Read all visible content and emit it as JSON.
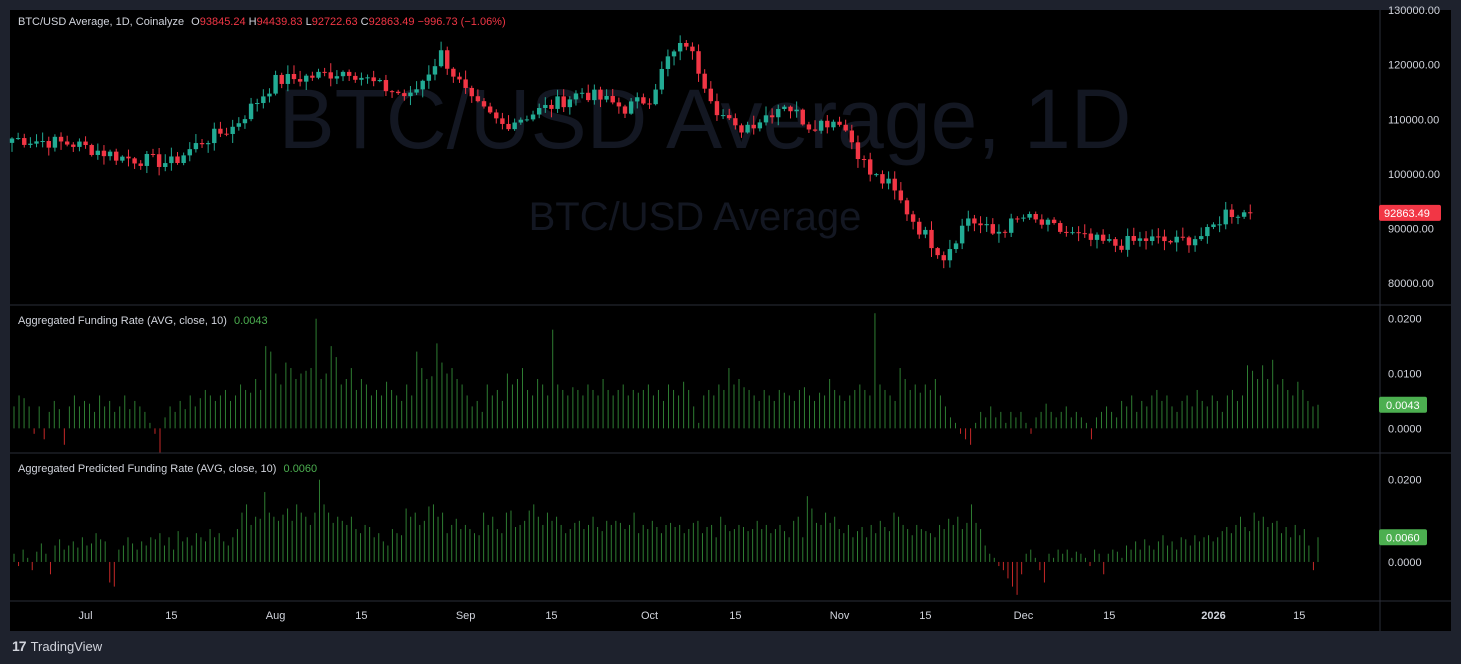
{
  "legend": {
    "symbol": "BTC/USD Average, 1D, Coinalyze",
    "o_label": "O",
    "o_value": "93845.24",
    "h_label": "H",
    "h_value": "94439.83",
    "l_label": "L",
    "l_value": "92722.63",
    "c_label": "C",
    "c_value": "92863.49",
    "change": "−996.73 (−1.06%)"
  },
  "watermark": {
    "big": "BTC/USD Average, 1D",
    "small": "BTC/USD Average"
  },
  "panes": {
    "funding": {
      "label": "Aggregated Funding Rate (AVG, close, 10)",
      "value": "0.0043"
    },
    "predicted": {
      "label": "Aggregated Predicted Funding Rate (AVG, close, 10)",
      "value": "0.0060"
    }
  },
  "branding": {
    "text": "TradingView",
    "icon": "tradingview-logo-icon"
  },
  "colors": {
    "up": "#22ab94",
    "down": "#f23645",
    "bg": "#000000",
    "frame": "#1e222d",
    "axis_text": "#d1d4dc",
    "last_price_badge": "#f23645",
    "funding_badge": "#4caf50"
  },
  "chart_data": [
    {
      "type": "candlestick",
      "title": "BTC/USD Average, 1D, Coinalyze",
      "ylim": [
        76000,
        130000
      ],
      "y_ticks": [
        "130000.00",
        "120000.00",
        "110000.00",
        "100000.00",
        "90000.00",
        "80000.00"
      ],
      "y_tick_values": [
        130000,
        120000,
        110000,
        100000,
        90000,
        80000
      ],
      "last_price": "92863.49",
      "last_value": 92863.49,
      "x_ticks": [
        "15",
        "Jul",
        "15",
        "Aug",
        "15",
        "Sep",
        "15",
        "Oct",
        "15",
        "Nov",
        "15",
        "Dec",
        "15",
        "2026",
        "15"
      ],
      "x_tick_day": [
        -4,
        12,
        26,
        43,
        57,
        74,
        88,
        104,
        118,
        135,
        149,
        165,
        179,
        196,
        210
      ],
      "close_anchor_day": [
        0,
        10,
        18,
        26,
        31,
        36,
        43,
        50,
        55,
        60,
        65,
        70,
        75,
        80,
        87,
        93,
        100,
        104,
        107,
        110,
        115,
        118,
        122,
        126,
        130,
        135,
        140,
        143,
        148,
        152,
        156,
        160,
        165,
        170,
        175,
        180,
        185,
        190,
        195,
        198,
        202
      ],
      "close_anchor_value": [
        106500,
        105500,
        103000,
        102000,
        106000,
        108500,
        117000,
        118000,
        119000,
        116000,
        114000,
        122000,
        113000,
        109000,
        112000,
        115000,
        112000,
        114000,
        121000,
        124000,
        112000,
        108000,
        110000,
        113000,
        109000,
        110000,
        100000,
        98000,
        90000,
        85000,
        92000,
        89000,
        92000,
        90000,
        88000,
        87000,
        88000,
        87500,
        89000,
        93000,
        92863
      ]
    },
    {
      "type": "bar",
      "title": "Aggregated Funding Rate (AVG, close, 10)",
      "ylim": [
        -0.0045,
        0.0225
      ],
      "y_ticks": [
        "0.0200",
        "0.0100",
        "0.0000"
      ],
      "y_tick_values": [
        0.02,
        0.01,
        0
      ],
      "last_value_label": "0.0043",
      "values": [
        0.004,
        0.006,
        0.0055,
        0.004,
        -0.001,
        0.004,
        -0.002,
        0.003,
        0.005,
        0.0035,
        -0.003,
        0.004,
        0.006,
        0.004,
        0.005,
        0.0045,
        0.003,
        0.006,
        0.004,
        0.005,
        0.003,
        0.004,
        0.006,
        0.0035,
        0.005,
        0.004,
        0.003,
        0.001,
        -0.001,
        -0.0045,
        0.002,
        0.004,
        0.003,
        0.005,
        0.0035,
        0.006,
        0.004,
        0.0055,
        0.007,
        0.006,
        0.005,
        0.006,
        0.007,
        0.005,
        0.006,
        0.008,
        0.007,
        0.0065,
        0.009,
        0.007,
        0.015,
        0.014,
        0.01,
        0.008,
        0.012,
        0.011,
        0.009,
        0.01,
        0.0105,
        0.011,
        0.02,
        0.009,
        0.01,
        0.015,
        0.013,
        0.008,
        0.009,
        0.011,
        0.007,
        0.009,
        0.008,
        0.006,
        0.007,
        0.006,
        0.0085,
        0.007,
        0.006,
        0.005,
        0.008,
        0.006,
        0.014,
        0.011,
        0.009,
        0.0095,
        0.0155,
        0.012,
        0.01,
        0.011,
        0.009,
        0.008,
        0.006,
        0.004,
        0.005,
        0.003,
        0.008,
        0.006,
        0.007,
        0.005,
        0.01,
        0.008,
        0.009,
        0.011,
        0.007,
        0.006,
        0.009,
        0.008,
        0.006,
        0.018,
        0.008,
        0.007,
        0.006,
        0.0075,
        0.007,
        0.006,
        0.008,
        0.007,
        0.006,
        0.009,
        0.007,
        0.006,
        0.007,
        0.008,
        0.006,
        0.007,
        0.0065,
        0.007,
        0.008,
        0.006,
        0.007,
        0.005,
        0.008,
        0.007,
        0.006,
        0.0085,
        0.007,
        0.004,
        0.001,
        0.006,
        0.007,
        0.006,
        0.008,
        0.007,
        0.011,
        0.008,
        0.009,
        0.0075,
        0.007,
        0.006,
        0.005,
        0.007,
        0.006,
        0.005,
        0.007,
        0.0065,
        0.006,
        0.005,
        0.007,
        0.0075,
        0.006,
        0.005,
        0.0065,
        0.006,
        0.009,
        0.007,
        0.006,
        0.005,
        0.006,
        0.007,
        0.008,
        0.007,
        0.006,
        0.021,
        0.008,
        0.007,
        0.006,
        0.005,
        0.011,
        0.009,
        0.007,
        0.008,
        0.0065,
        0.008,
        0.007,
        0.009,
        0.006,
        0.004,
        0.002,
        0.001,
        -0.001,
        -0.002,
        -0.003,
        0.001,
        0.003,
        0.002,
        0.004,
        0.002,
        0.003,
        0.001,
        0.003,
        0.002,
        0.003,
        0.001,
        -0.001,
        0.002,
        0.003,
        0.0045,
        0.003,
        0.002,
        0.003,
        0.004,
        0.002,
        0.003,
        0.002,
        0.001,
        -0.002,
        0.002,
        0.003,
        0.004,
        0.003,
        0.002,
        0.005,
        0.004,
        0.006,
        0.003,
        0.005,
        0.004,
        0.006,
        0.007,
        0.005,
        0.006,
        0.004,
        0.003,
        0.005,
        0.006,
        0.004,
        0.007,
        0.005,
        0.004,
        0.006,
        0.005,
        0.003,
        0.006,
        0.007,
        0.005,
        0.006,
        0.0115,
        0.0105,
        0.009,
        0.0115,
        0.009,
        0.0125,
        0.008,
        0.009,
        0.007,
        0.006,
        0.0085,
        0.007,
        0.005,
        0.004,
        0.0043
      ]
    },
    {
      "type": "bar",
      "title": "Aggregated Predicted Funding Rate (AVG, close, 10)",
      "ylim": [
        -0.0095,
        0.0265
      ],
      "y_ticks": [
        "0.0200",
        "0.0000"
      ],
      "y_tick_values": [
        0.02,
        0
      ],
      "last_value_label": "0.0060",
      "values": [
        0.002,
        -0.001,
        0.003,
        0.001,
        -0.002,
        0.0025,
        0.0045,
        0.002,
        -0.003,
        0.004,
        0.0055,
        0.003,
        0.004,
        0.005,
        0.0035,
        0.006,
        0.004,
        0.0045,
        0.007,
        0.0055,
        0.005,
        -0.005,
        -0.006,
        0.003,
        0.004,
        0.006,
        0.0045,
        0.003,
        0.005,
        0.004,
        0.006,
        0.0055,
        0.007,
        0.004,
        0.006,
        0.003,
        0.0075,
        0.005,
        0.006,
        0.004,
        0.007,
        0.006,
        0.005,
        0.008,
        0.006,
        0.007,
        0.005,
        0.004,
        0.006,
        0.008,
        0.012,
        0.014,
        0.009,
        0.011,
        0.0105,
        0.017,
        0.012,
        0.011,
        0.01,
        0.0115,
        0.013,
        0.01,
        0.014,
        0.012,
        0.011,
        0.009,
        0.012,
        0.02,
        0.014,
        0.012,
        0.0095,
        0.011,
        0.01,
        0.009,
        0.011,
        0.008,
        0.007,
        0.009,
        0.0085,
        0.006,
        0.007,
        0.005,
        0.004,
        0.008,
        0.007,
        0.0065,
        0.013,
        0.011,
        0.012,
        0.009,
        0.01,
        0.0135,
        0.014,
        0.011,
        0.012,
        0.007,
        0.009,
        0.0105,
        0.008,
        0.009,
        0.008,
        0.007,
        0.0065,
        0.012,
        0.009,
        0.011,
        0.008,
        0.007,
        0.012,
        0.0125,
        0.0085,
        0.009,
        0.01,
        0.0125,
        0.014,
        0.011,
        0.009,
        0.012,
        0.01,
        0.011,
        0.009,
        0.007,
        0.008,
        0.0095,
        0.01,
        0.008,
        0.009,
        0.011,
        0.0085,
        0.0075,
        0.01,
        0.009,
        0.01,
        0.0095,
        0.008,
        0.009,
        0.012,
        0.007,
        0.009,
        0.008,
        0.01,
        0.0085,
        0.007,
        0.009,
        0.0095,
        0.0085,
        0.009,
        0.007,
        0.008,
        0.0095,
        0.01,
        0.007,
        0.0085,
        0.009,
        0.006,
        0.011,
        0.009,
        0.0075,
        0.008,
        0.009,
        0.0085,
        0.0075,
        0.008,
        0.01,
        0.008,
        0.009,
        0.007,
        0.008,
        0.009,
        0.0075,
        0.006,
        0.01,
        0.011,
        0.006,
        0.016,
        0.013,
        0.0095,
        0.009,
        0.012,
        0.0095,
        0.011,
        0.008,
        0.007,
        0.009,
        0.006,
        0.0075,
        0.0085,
        0.006,
        0.009,
        0.007,
        0.01,
        0.0085,
        0.0075,
        0.012,
        0.011,
        0.009,
        0.008,
        0.0065,
        0.009,
        0.008,
        0.0075,
        0.007,
        0.006,
        0.009,
        0.008,
        0.0105,
        0.009,
        0.011,
        0.008,
        0.0095,
        0.014,
        0.0095,
        0.008,
        0.004,
        0.002,
        0.001,
        -0.001,
        -0.002,
        -0.004,
        -0.006,
        -0.008,
        -0.003,
        0.002,
        0.003,
        0.001,
        -0.002,
        -0.005,
        0.002,
        0.001,
        0.003,
        0.002,
        0.003,
        0.001,
        0.0025,
        0.002,
        0.001,
        -0.001,
        0.003,
        0.002,
        -0.003,
        0.002,
        0.003,
        0.0025,
        0.001,
        0.004,
        0.003,
        0.005,
        0.003,
        0.0055,
        0.004,
        0.003,
        0.005,
        0.0065,
        0.004,
        0.005,
        0.003,
        0.006,
        0.0055,
        0.004,
        0.0065,
        0.005,
        0.006,
        0.0065,
        0.005,
        0.006,
        0.0075,
        0.0085,
        0.007,
        0.009,
        0.011,
        0.0085,
        0.0075,
        0.012,
        0.01,
        0.011,
        0.0085,
        0.0095,
        0.01,
        0.007,
        0.0085,
        0.006,
        0.009,
        0.0065,
        0.008,
        0.004,
        -0.002,
        0.006
      ]
    }
  ]
}
